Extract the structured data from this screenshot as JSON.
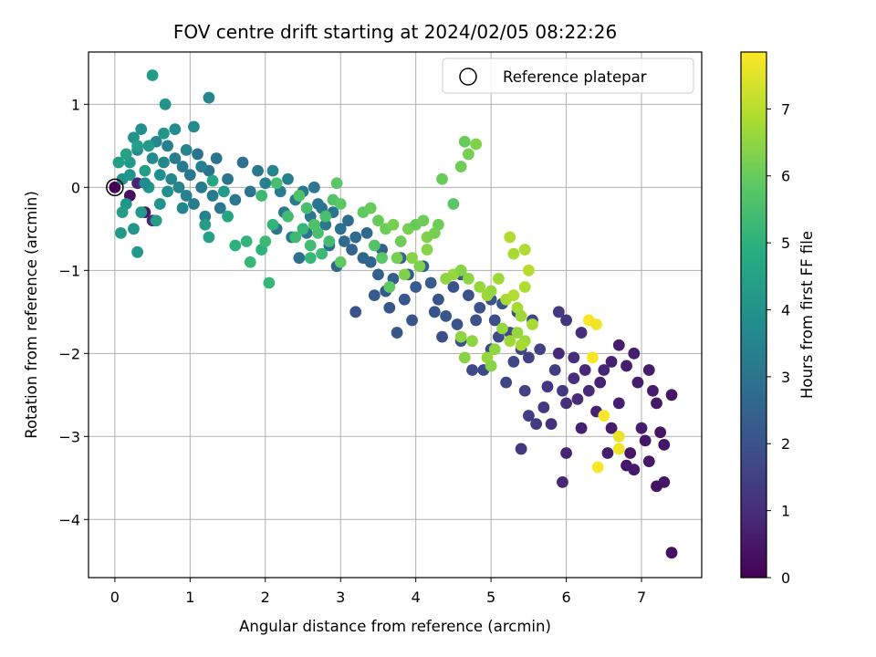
{
  "chart_data": {
    "type": "scatter",
    "title": "FOV centre drift starting at 2024/02/05 08:22:26",
    "xlabel": "Angular distance from reference (arcmin)",
    "ylabel": "Rotation from reference (arcmin)",
    "xlim": [
      -0.35,
      7.8
    ],
    "ylim": [
      -4.7,
      1.63
    ],
    "xticks": [
      0,
      1,
      2,
      3,
      4,
      5,
      6,
      7
    ],
    "yticks": [
      1,
      0,
      -1,
      -2,
      -3,
      -4
    ],
    "grid": true,
    "legend": {
      "entries": [
        "Reference platepar"
      ],
      "placement": "top-right"
    },
    "colorbar": {
      "label": "Hours from first FF file",
      "colormap": "viridis",
      "range": [
        0,
        7.85
      ],
      "ticks": [
        0,
        1,
        2,
        3,
        4,
        5,
        6,
        7
      ]
    },
    "reference_point": {
      "x": 0,
      "y": 0
    },
    "points": [
      [
        0.0,
        0.0,
        0.02
      ],
      [
        0.2,
        -0.1,
        0.3
      ],
      [
        0.4,
        -0.3,
        0.5
      ],
      [
        0.3,
        0.05,
        0.8
      ],
      [
        0.5,
        -0.4,
        0.9
      ],
      [
        7.4,
        -4.4,
        0.35
      ],
      [
        7.3,
        -3.55,
        0.45
      ],
      [
        7.2,
        -3.6,
        0.4
      ],
      [
        7.1,
        -3.3,
        0.5
      ],
      [
        6.9,
        -3.4,
        0.55
      ],
      [
        6.8,
        -3.35,
        0.5
      ],
      [
        7.0,
        -2.9,
        0.6
      ],
      [
        7.2,
        -2.6,
        0.55
      ],
      [
        7.1,
        -2.2,
        0.6
      ],
      [
        7.4,
        -2.5,
        0.5
      ],
      [
        7.3,
        -3.1,
        0.45
      ],
      [
        6.6,
        -2.9,
        0.6
      ],
      [
        6.7,
        -2.6,
        0.7
      ],
      [
        6.9,
        -2.0,
        0.65
      ],
      [
        6.7,
        -1.9,
        0.6
      ],
      [
        6.5,
        -2.2,
        0.8
      ],
      [
        6.3,
        -2.45,
        0.9
      ],
      [
        6.1,
        -2.3,
        1.0
      ],
      [
        6.0,
        -2.6,
        1.1
      ],
      [
        5.9,
        -2.0,
        0.9
      ],
      [
        6.1,
        -2.05,
        1.0
      ],
      [
        6.0,
        -1.6,
        1.2
      ],
      [
        5.9,
        -1.5,
        1.3
      ],
      [
        6.2,
        -1.75,
        1.0
      ],
      [
        5.75,
        -2.4,
        1.2
      ],
      [
        5.7,
        -2.65,
        1.3
      ],
      [
        5.8,
        -2.85,
        1.1
      ],
      [
        6.0,
        -3.2,
        0.8
      ],
      [
        5.95,
        -3.55,
        0.9
      ],
      [
        6.2,
        -2.9,
        0.7
      ],
      [
        6.4,
        -2.7,
        0.7
      ],
      [
        6.55,
        -3.2,
        0.6
      ],
      [
        6.85,
        -3.2,
        0.5
      ],
      [
        7.05,
        -3.05,
        0.5
      ],
      [
        7.25,
        -2.95,
        0.45
      ],
      [
        7.15,
        -2.45,
        0.55
      ],
      [
        6.95,
        -2.35,
        0.6
      ],
      [
        6.8,
        -2.15,
        0.65
      ],
      [
        6.6,
        -2.1,
        0.7
      ],
      [
        6.45,
        -2.35,
        0.75
      ],
      [
        6.25,
        -2.2,
        0.85
      ],
      [
        6.15,
        -2.55,
        0.95
      ],
      [
        5.5,
        -2.05,
        1.5
      ],
      [
        5.4,
        -1.95,
        1.6
      ],
      [
        5.3,
        -2.1,
        1.7
      ],
      [
        5.1,
        -1.8,
        1.8
      ],
      [
        5.0,
        -1.95,
        1.7
      ],
      [
        4.9,
        -2.2,
        1.75
      ],
      [
        5.2,
        -2.35,
        1.6
      ],
      [
        5.45,
        -2.45,
        1.5
      ],
      [
        5.5,
        -2.75,
        1.4
      ],
      [
        5.6,
        -2.85,
        1.35
      ],
      [
        5.4,
        -3.15,
        1.2
      ],
      [
        5.15,
        -1.4,
        2.0
      ],
      [
        5.0,
        -1.35,
        2.1
      ],
      [
        4.8,
        -1.6,
        1.9
      ],
      [
        4.7,
        -1.3,
        2.0
      ],
      [
        4.6,
        -1.05,
        2.2
      ],
      [
        4.5,
        -1.2,
        2.0
      ],
      [
        4.4,
        -1.55,
        2.1
      ],
      [
        4.3,
        -1.35,
        2.0
      ],
      [
        4.2,
        -1.15,
        2.3
      ],
      [
        4.1,
        -0.95,
        2.4
      ],
      [
        4.0,
        -1.2,
        2.3
      ],
      [
        3.9,
        -1.05,
        2.2
      ],
      [
        3.8,
        -0.85,
        2.5
      ],
      [
        3.7,
        -1.1,
        2.3
      ],
      [
        3.6,
        -1.25,
        2.2
      ],
      [
        3.5,
        -1.05,
        2.4
      ],
      [
        3.4,
        -0.9,
        2.5
      ],
      [
        3.3,
        -0.85,
        2.6
      ],
      [
        3.2,
        -0.6,
        2.7
      ],
      [
        3.1,
        -0.4,
        2.8
      ],
      [
        3.0,
        -0.5,
        2.9
      ],
      [
        2.9,
        -0.3,
        3.0
      ],
      [
        2.8,
        -0.45,
        3.1
      ],
      [
        2.7,
        -0.2,
        3.0
      ],
      [
        2.6,
        -0.35,
        3.1
      ],
      [
        2.5,
        -0.05,
        3.2
      ],
      [
        2.4,
        -0.15,
        3.3
      ],
      [
        2.3,
        0.1,
        3.4
      ],
      [
        2.2,
        -0.05,
        3.3
      ],
      [
        2.1,
        0.2,
        3.5
      ],
      [
        2.0,
        0.05,
        3.4
      ],
      [
        3.75,
        -1.75,
        2.1
      ],
      [
        3.2,
        -1.5,
        2.0
      ],
      [
        4.6,
        -1.85,
        1.9
      ],
      [
        4.75,
        -2.2,
        1.8
      ],
      [
        4.55,
        -1.65,
        2.0
      ],
      [
        4.35,
        -1.8,
        1.85
      ],
      [
        4.25,
        -1.5,
        2.05
      ],
      [
        3.95,
        -1.6,
        2.05
      ],
      [
        3.85,
        -1.35,
        2.15
      ],
      [
        3.65,
        -1.45,
        2.1
      ],
      [
        3.45,
        -1.3,
        2.2
      ],
      [
        3.55,
        -0.75,
        2.45
      ],
      [
        3.35,
        -0.55,
        2.6
      ],
      [
        3.15,
        -0.75,
        2.5
      ],
      [
        3.05,
        -0.65,
        2.7
      ],
      [
        2.95,
        -0.95,
        2.6
      ],
      [
        2.85,
        -0.7,
        2.8
      ],
      [
        2.75,
        -0.25,
        3.0
      ],
      [
        2.65,
        0.0,
        3.1
      ],
      [
        2.55,
        -0.55,
        3.0
      ],
      [
        2.45,
        -0.85,
        2.9
      ],
      [
        2.35,
        -0.6,
        3.1
      ],
      [
        2.25,
        -0.3,
        3.2
      ],
      [
        2.15,
        -0.5,
        3.0
      ],
      [
        4.85,
        -1.45,
        1.95
      ],
      [
        5.05,
        -1.6,
        1.85
      ],
      [
        5.25,
        -1.75,
        1.75
      ],
      [
        5.35,
        -1.5,
        1.8
      ],
      [
        5.55,
        -1.6,
        1.7
      ],
      [
        5.65,
        -1.95,
        1.6
      ],
      [
        5.85,
        -2.2,
        1.45
      ],
      [
        5.95,
        -2.45,
        1.3
      ],
      [
        0.1,
        0.1,
        4.0
      ],
      [
        0.15,
        -0.2,
        4.1
      ],
      [
        0.2,
        0.3,
        4.2
      ],
      [
        0.25,
        0.6,
        4.0
      ],
      [
        0.3,
        0.45,
        3.8
      ],
      [
        0.35,
        0.7,
        3.9
      ],
      [
        0.4,
        0.2,
        4.3
      ],
      [
        0.45,
        0.0,
        4.1
      ],
      [
        0.5,
        0.35,
        3.7
      ],
      [
        0.55,
        0.55,
        3.6
      ],
      [
        0.6,
        0.15,
        3.9
      ],
      [
        0.65,
        0.3,
        3.5
      ],
      [
        0.7,
        0.5,
        3.4
      ],
      [
        0.75,
        0.1,
        3.6
      ],
      [
        0.8,
        0.35,
        3.3
      ],
      [
        0.85,
        0.0,
        3.5
      ],
      [
        0.9,
        0.25,
        3.2
      ],
      [
        0.95,
        -0.1,
        3.4
      ],
      [
        1.0,
        0.15,
        3.1
      ],
      [
        1.05,
        -0.2,
        3.3
      ],
      [
        1.1,
        0.4,
        3.0
      ],
      [
        1.15,
        0.0,
        3.2
      ],
      [
        1.2,
        -0.35,
        3.4
      ],
      [
        1.25,
        0.2,
        3.0
      ],
      [
        1.3,
        -0.1,
        3.2
      ],
      [
        1.35,
        0.35,
        3.0
      ],
      [
        1.4,
        -0.25,
        3.1
      ],
      [
        1.5,
        0.1,
        3.0
      ],
      [
        1.6,
        -0.15,
        3.1
      ],
      [
        1.7,
        0.3,
        2.9
      ],
      [
        1.8,
        -0.05,
        3.0
      ],
      [
        1.9,
        0.2,
        3.1
      ],
      [
        0.5,
        1.35,
        4.3
      ],
      [
        0.67,
        1.0,
        4.0
      ],
      [
        1.25,
        1.08,
        3.6
      ],
      [
        1.05,
        0.73,
        3.7
      ],
      [
        0.8,
        0.7,
        3.8
      ],
      [
        0.65,
        0.65,
        4.1
      ],
      [
        0.45,
        0.5,
        4.2
      ],
      [
        0.3,
        0.5,
        4.4
      ],
      [
        0.15,
        0.4,
        4.5
      ],
      [
        0.05,
        0.3,
        4.4
      ],
      [
        0.1,
        -0.3,
        4.3
      ],
      [
        0.08,
        -0.55,
        4.2
      ],
      [
        0.3,
        -0.78,
        4.2
      ],
      [
        0.25,
        -0.5,
        4.1
      ],
      [
        0.35,
        -0.3,
        4.2
      ],
      [
        0.55,
        -0.4,
        4.3
      ],
      [
        0.6,
        -0.2,
        4.0
      ],
      [
        0.7,
        -0.05,
        3.9
      ],
      [
        0.95,
        0.45,
        3.5
      ],
      [
        1.15,
        0.25,
        3.4
      ],
      [
        1.2,
        -0.45,
        4.3
      ],
      [
        1.25,
        -0.6,
        4.5
      ],
      [
        1.5,
        -0.35,
        4.6
      ],
      [
        1.45,
        -0.05,
        4.2
      ],
      [
        1.3,
        0.08,
        4.6
      ],
      [
        0.9,
        -0.25,
        3.6
      ],
      [
        0.4,
        0.05,
        3.8
      ],
      [
        0.2,
        0.15,
        4.1
      ],
      [
        1.6,
        -0.7,
        5.0
      ],
      [
        1.75,
        -0.65,
        5.1
      ],
      [
        1.8,
        -0.9,
        5.2
      ],
      [
        1.95,
        -0.75,
        5.0
      ],
      [
        2.0,
        -0.65,
        5.3
      ],
      [
        2.05,
        -1.15,
        5.2
      ],
      [
        2.1,
        -0.45,
        5.1
      ],
      [
        1.95,
        -0.1,
        5.3
      ],
      [
        2.15,
        0.05,
        5.5
      ],
      [
        2.3,
        -0.35,
        5.4
      ],
      [
        2.4,
        -0.6,
        5.3
      ],
      [
        2.5,
        -0.5,
        5.2
      ],
      [
        2.6,
        -0.7,
        5.4
      ],
      [
        2.7,
        -0.55,
        5.5
      ],
      [
        2.55,
        -0.25,
        5.5
      ],
      [
        2.45,
        -0.1,
        5.6
      ],
      [
        2.65,
        -0.45,
        5.6
      ],
      [
        2.8,
        -0.35,
        5.5
      ],
      [
        2.9,
        -0.15,
        5.7
      ],
      [
        2.95,
        0.05,
        5.8
      ],
      [
        3.0,
        -0.2,
        5.8
      ],
      [
        2.85,
        -0.65,
        5.4
      ],
      [
        2.75,
        -0.8,
        5.3
      ],
      [
        2.6,
        -0.85,
        5.2
      ],
      [
        3.0,
        -0.9,
        5.9
      ],
      [
        3.3,
        -0.3,
        5.9
      ],
      [
        3.4,
        -0.25,
        6.0
      ],
      [
        3.5,
        -0.4,
        6.0
      ],
      [
        3.6,
        -0.5,
        6.1
      ],
      [
        3.7,
        -0.45,
        6.2
      ],
      [
        3.8,
        -0.65,
        6.1
      ],
      [
        3.9,
        -0.5,
        6.2
      ],
      [
        4.0,
        -0.45,
        6.0
      ],
      [
        4.1,
        -0.4,
        6.1
      ],
      [
        4.15,
        -0.6,
        6.3
      ],
      [
        4.25,
        -0.55,
        6.2
      ],
      [
        3.45,
        -0.7,
        5.7
      ],
      [
        3.55,
        -0.85,
        5.8
      ],
      [
        3.65,
        -1.2,
        5.9
      ],
      [
        3.75,
        -0.85,
        6.2
      ],
      [
        3.85,
        -1.05,
        6.3
      ],
      [
        3.95,
        -0.85,
        6.4
      ],
      [
        4.05,
        -0.95,
        6.3
      ],
      [
        4.15,
        -0.75,
        6.4
      ],
      [
        4.35,
        0.1,
        6.0
      ],
      [
        4.5,
        -0.2,
        5.8
      ],
      [
        4.6,
        0.25,
        6.1
      ],
      [
        4.65,
        0.55,
        6.0
      ],
      [
        4.7,
        0.4,
        6.2
      ],
      [
        4.8,
        0.52,
        6.3
      ],
      [
        4.3,
        -0.45,
        6.1
      ],
      [
        4.4,
        -1.1,
        6.5
      ],
      [
        4.5,
        -1.05,
        6.6
      ],
      [
        4.6,
        -1.0,
        6.4
      ],
      [
        4.7,
        -1.1,
        6.5
      ],
      [
        4.85,
        -1.2,
        6.6
      ],
      [
        4.95,
        -1.3,
        6.7
      ],
      [
        5.0,
        -1.25,
        6.6
      ],
      [
        5.1,
        -1.1,
        6.7
      ],
      [
        5.2,
        -1.35,
        6.8
      ],
      [
        5.3,
        -1.3,
        6.9
      ],
      [
        5.35,
        -1.45,
        6.8
      ],
      [
        5.4,
        -1.55,
        6.7
      ],
      [
        5.45,
        -1.2,
        6.9
      ],
      [
        5.5,
        -1.0,
        7.0
      ],
      [
        5.45,
        -0.75,
        6.9
      ],
      [
        5.25,
        -0.6,
        6.9
      ],
      [
        5.3,
        -0.8,
        6.8
      ],
      [
        5.55,
        -1.65,
        6.8
      ],
      [
        5.45,
        -1.85,
        6.7
      ],
      [
        5.35,
        -1.75,
        6.6
      ],
      [
        5.25,
        -1.85,
        6.7
      ],
      [
        5.15,
        -1.7,
        6.6
      ],
      [
        5.05,
        -1.95,
        6.5
      ],
      [
        4.95,
        -2.05,
        6.6
      ],
      [
        4.75,
        -1.85,
        6.5
      ],
      [
        4.65,
        -2.05,
        6.4
      ],
      [
        5.0,
        -2.15,
        6.4
      ],
      [
        4.6,
        -1.8,
        6.5
      ],
      [
        5.4,
        -1.9,
        6.8
      ],
      [
        6.3,
        -1.6,
        7.8
      ],
      [
        6.4,
        -1.65,
        7.7
      ],
      [
        6.35,
        -2.05,
        7.8
      ],
      [
        6.5,
        -2.75,
        7.8
      ],
      [
        6.7,
        -3.0,
        7.6
      ],
      [
        6.7,
        -3.15,
        7.7
      ],
      [
        6.42,
        -3.37,
        7.8
      ]
    ]
  }
}
